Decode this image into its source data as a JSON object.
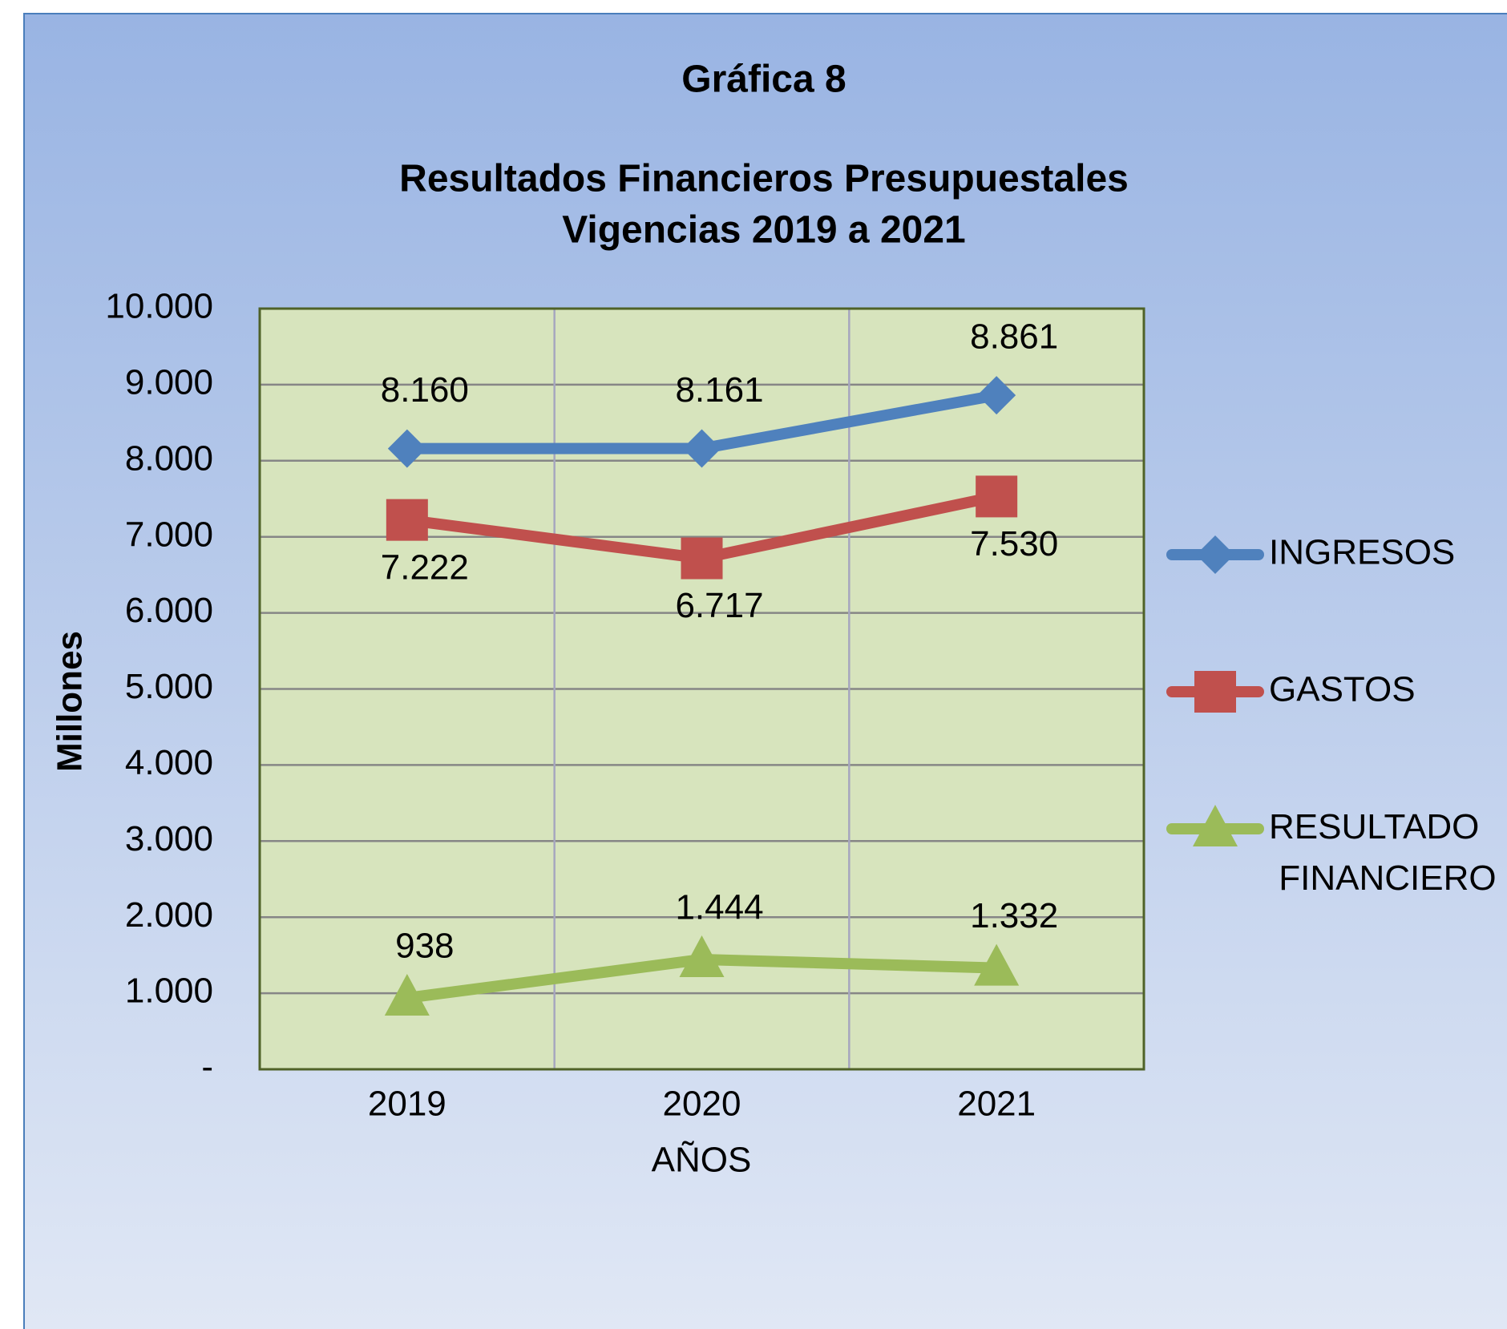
{
  "chart_data": {
    "type": "line",
    "title": "Gráfica 8",
    "subtitle": [
      "Resultados Financieros Presupuestales",
      "Vigencias 2019 a 2021"
    ],
    "x_label": "AÑOS",
    "y_label": "Millones",
    "categories": [
      "2019",
      "2020",
      "2021"
    ],
    "series": [
      {
        "name": "INGRESOS",
        "color": "#4f81bd",
        "marker": "diamond",
        "values": [
          8160,
          8161,
          8861
        ],
        "value_labels": [
          "8.160",
          "8.161",
          "8.861"
        ]
      },
      {
        "name": "GASTOS",
        "color": "#c0504d",
        "marker": "square",
        "values": [
          7222,
          6717,
          7530
        ],
        "value_labels": [
          "7.222",
          "6.717",
          "7.530"
        ]
      },
      {
        "name": "RESULTADO FINANCIERO",
        "color": "#9bbb59",
        "marker": "triangle",
        "values": [
          938,
          1444,
          1332
        ],
        "value_labels": [
          "938",
          "1.444",
          "1.332"
        ]
      }
    ],
    "ylim": [
      0,
      10000
    ],
    "yticks": [
      {
        "value": 0,
        "label": "-"
      },
      {
        "value": 1000,
        "label": "1.000"
      },
      {
        "value": 2000,
        "label": "2.000"
      },
      {
        "value": 3000,
        "label": "3.000"
      },
      {
        "value": 4000,
        "label": "4.000"
      },
      {
        "value": 5000,
        "label": "5.000"
      },
      {
        "value": 6000,
        "label": "6.000"
      },
      {
        "value": 7000,
        "label": "7.000"
      },
      {
        "value": 8000,
        "label": "8.000"
      },
      {
        "value": 9000,
        "label": "9.000"
      },
      {
        "value": 10000,
        "label": "10.000"
      }
    ],
    "grid": true,
    "legend": "right"
  }
}
